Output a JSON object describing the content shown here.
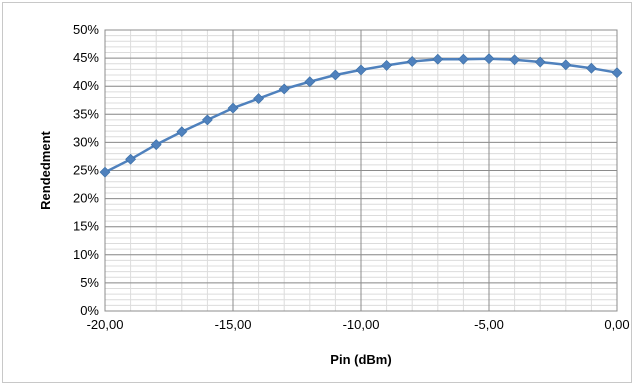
{
  "chart_data": {
    "type": "line",
    "title": "",
    "xlabel": "Pin (dBm)",
    "ylabel": "Rendedment",
    "xlim": [
      -20,
      0
    ],
    "ylim": [
      0,
      0.5
    ],
    "grid": true,
    "legend": "none",
    "x_ticks": [
      {
        "value": -20,
        "label": "-20,00"
      },
      {
        "value": -15,
        "label": "-15,00"
      },
      {
        "value": -10,
        "label": "-10,00"
      },
      {
        "value": -5,
        "label": "-5,00"
      },
      {
        "value": 0,
        "label": "0,00"
      }
    ],
    "y_ticks": [
      {
        "value": 0.0,
        "label": "0%"
      },
      {
        "value": 0.05,
        "label": "5%"
      },
      {
        "value": 0.1,
        "label": "10%"
      },
      {
        "value": 0.15,
        "label": "15%"
      },
      {
        "value": 0.2,
        "label": "20%"
      },
      {
        "value": 0.25,
        "label": "25%"
      },
      {
        "value": 0.3,
        "label": "30%"
      },
      {
        "value": 0.35,
        "label": "35%"
      },
      {
        "value": 0.4,
        "label": "40%"
      },
      {
        "value": 0.45,
        "label": "45%"
      },
      {
        "value": 0.5,
        "label": "50%"
      }
    ],
    "series": [
      {
        "color": "#4f81bd",
        "marker": "diamond",
        "x": [
          -20,
          -19,
          -18,
          -17,
          -16,
          -15,
          -14,
          -13,
          -12,
          -11,
          -10,
          -9,
          -8,
          -7,
          -6,
          -5,
          -4,
          -3,
          -2,
          -1,
          0
        ],
        "y": [
          0.247,
          0.27,
          0.296,
          0.319,
          0.34,
          0.361,
          0.378,
          0.395,
          0.408,
          0.42,
          0.429,
          0.437,
          0.444,
          0.448,
          0.448,
          0.449,
          0.447,
          0.443,
          0.438,
          0.432,
          0.424
        ]
      }
    ]
  }
}
